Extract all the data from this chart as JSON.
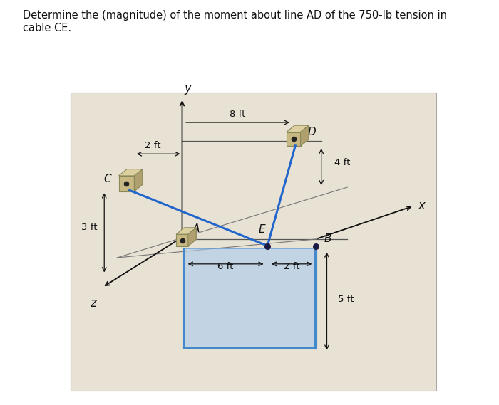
{
  "title": "Determine the (magnitude) of the moment about line AD of the 750-lb tension in\ncable CE.",
  "title_fontsize": 10.5,
  "bg_color": "#e8e2d5",
  "fig_bg": "#ffffff",
  "plate_color": "#aaccee",
  "plate_alpha": 0.6,
  "plate_edge_color": "#4488cc",
  "cable_color": "#2266cc",
  "cable_lw": 2.2,
  "axis_color": "#111111",
  "bracket_front": "#c8b882",
  "bracket_top": "#ddd0a0",
  "bracket_side": "#b0a070",
  "bracket_edge": "#888858",
  "labels": {
    "y_axis": "y",
    "z_axis": "z",
    "x_axis": "x",
    "A": "A",
    "B": "B",
    "C": "C",
    "D": "D",
    "E": "E"
  },
  "dims": {
    "2ft_a": "2 ft",
    "8ft": "8 ft",
    "3ft": "3 ft",
    "4ft": "4 ft",
    "6ft": "6 ft",
    "2ft_b": "2 ft",
    "5ft": "5 ft"
  }
}
